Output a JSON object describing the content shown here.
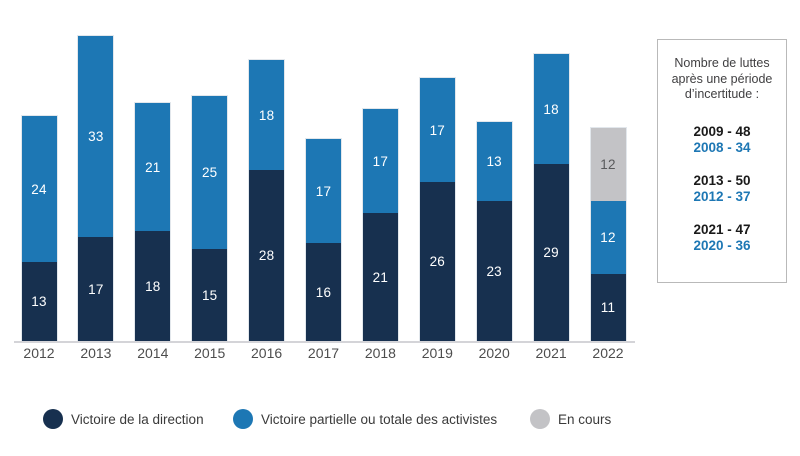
{
  "chart_data": {
    "type": "bar",
    "stacked": true,
    "categories": [
      "2012",
      "2013",
      "2014",
      "2015",
      "2016",
      "2017",
      "2018",
      "2019",
      "2020",
      "2021",
      "2022"
    ],
    "series": [
      {
        "name": "Victoire de la direction",
        "color": "#17304f",
        "label_color": "#ffffff",
        "values": [
          13,
          17,
          18,
          15,
          28,
          16,
          21,
          26,
          23,
          29,
          11
        ]
      },
      {
        "name": "Victoire partielle ou totale des activistes",
        "color": "#1d77b4",
        "label_color": "#ffffff",
        "values": [
          24,
          33,
          21,
          25,
          18,
          17,
          17,
          17,
          13,
          18,
          12
        ]
      },
      {
        "name": "En cours",
        "color": "#c3c3c6",
        "label_color": "#58595b",
        "values": [
          null,
          null,
          null,
          null,
          null,
          null,
          null,
          null,
          null,
          null,
          12
        ]
      }
    ],
    "totals": [
      37,
      50,
      39,
      40,
      46,
      33,
      38,
      43,
      36,
      47,
      35
    ],
    "ylim": [
      0,
      50
    ],
    "grid": false,
    "legend_position": "bottom",
    "title": ""
  },
  "note_box": {
    "title_lines": [
      "Nombre de luttes",
      "après une période",
      "d’incertitude :"
    ],
    "pairs": [
      {
        "primary": "2009 - 48",
        "secondary": "2008 - 34"
      },
      {
        "primary": "2013 - 50",
        "secondary": "2012 - 37"
      },
      {
        "primary": "2021 - 47",
        "secondary": "2020 - 36"
      }
    ],
    "primary_color": "#1a1a1a",
    "secondary_color": "#1d77b4"
  }
}
